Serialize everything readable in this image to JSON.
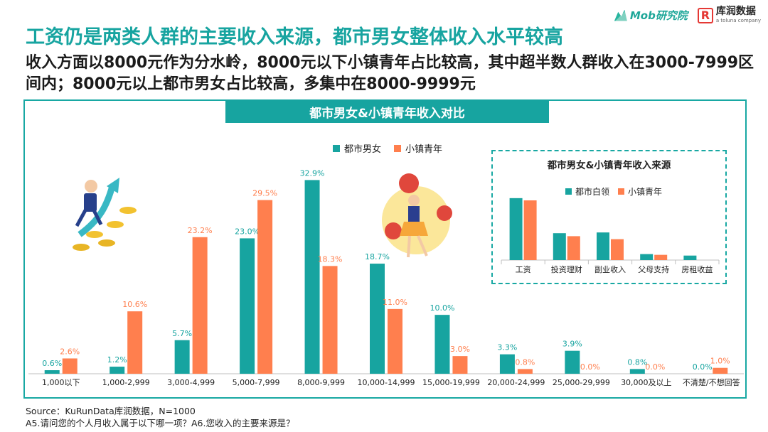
{
  "header": {
    "title": "工资仍是两类人群的主要收入来源，都市男女整体收入水平较高",
    "subtitle": "收入方面以8000元作为分水岭，8000元以下小镇青年占比较高，其中超半数人群收入在3000-7999区间内；8000元以上都市男女占比较高，多集中在8000-9999元"
  },
  "logos": {
    "mob": "Mob研究院",
    "kr_mark": "R",
    "kr_cn": "库润数据",
    "kr_en": "a toluna company"
  },
  "colors": {
    "teal": "#17a4a0",
    "orange": "#ff7f4e",
    "frame": "#18a8a3"
  },
  "chart_data": [
    {
      "type": "bar",
      "title": "都市男女&小镇青年收入对比",
      "categories": [
        "1,000以下",
        "1,000-2,999",
        "3,000-4,999",
        "5,000-7,999",
        "8,000-9,999",
        "10,000-14,999",
        "15,000-19,999",
        "20,000-24,999",
        "25,000-29,999",
        "30,000及以上",
        "不清楚/不想回答"
      ],
      "series": [
        {
          "name": "都市男女",
          "values": [
            0.6,
            1.2,
            5.7,
            23.0,
            32.9,
            18.7,
            10.0,
            3.3,
            3.9,
            0.8,
            0.0
          ],
          "labels": [
            "0.6%",
            "1.2%",
            "5.7%",
            "23.0%",
            "32.9%",
            "18.7%",
            "10.0%",
            "3.3%",
            "3.9%",
            "0.8%",
            "0.0%"
          ],
          "color": "#17a4a0"
        },
        {
          "name": "小镇青年",
          "values": [
            2.6,
            10.6,
            23.2,
            29.5,
            18.3,
            11.0,
            3.0,
            0.8,
            0.0,
            0.0,
            1.0
          ],
          "labels": [
            "2.6%",
            "10.6%",
            "23.2%",
            "29.5%",
            "18.3%",
            "11.0%",
            "3.0%",
            "0.8%",
            "0.0%",
            "0.0%",
            "1.0%"
          ],
          "color": "#ff7f4e"
        }
      ],
      "ylim": [
        0,
        35
      ],
      "legend": "top-center"
    },
    {
      "type": "bar",
      "title": "都市男女&小镇青年收入来源",
      "categories": [
        "工资",
        "投资理财",
        "副业收入",
        "父母支持",
        "房租收益"
      ],
      "series": [
        {
          "name": "都市白领",
          "values": [
            83,
            36,
            37,
            8,
            6
          ],
          "color": "#17a4a0"
        },
        {
          "name": "小镇青年",
          "values": [
            80,
            32,
            28,
            7,
            0
          ],
          "color": "#ff7f4e"
        }
      ],
      "ylim": [
        0,
        100
      ],
      "legend": "top-center"
    }
  ],
  "source": {
    "line1": "Source：KuRunData库润数据，N=1000",
    "line2": "A5.请问您的个人月收入属于以下哪一项？A6.您收入的主要来源是？"
  }
}
